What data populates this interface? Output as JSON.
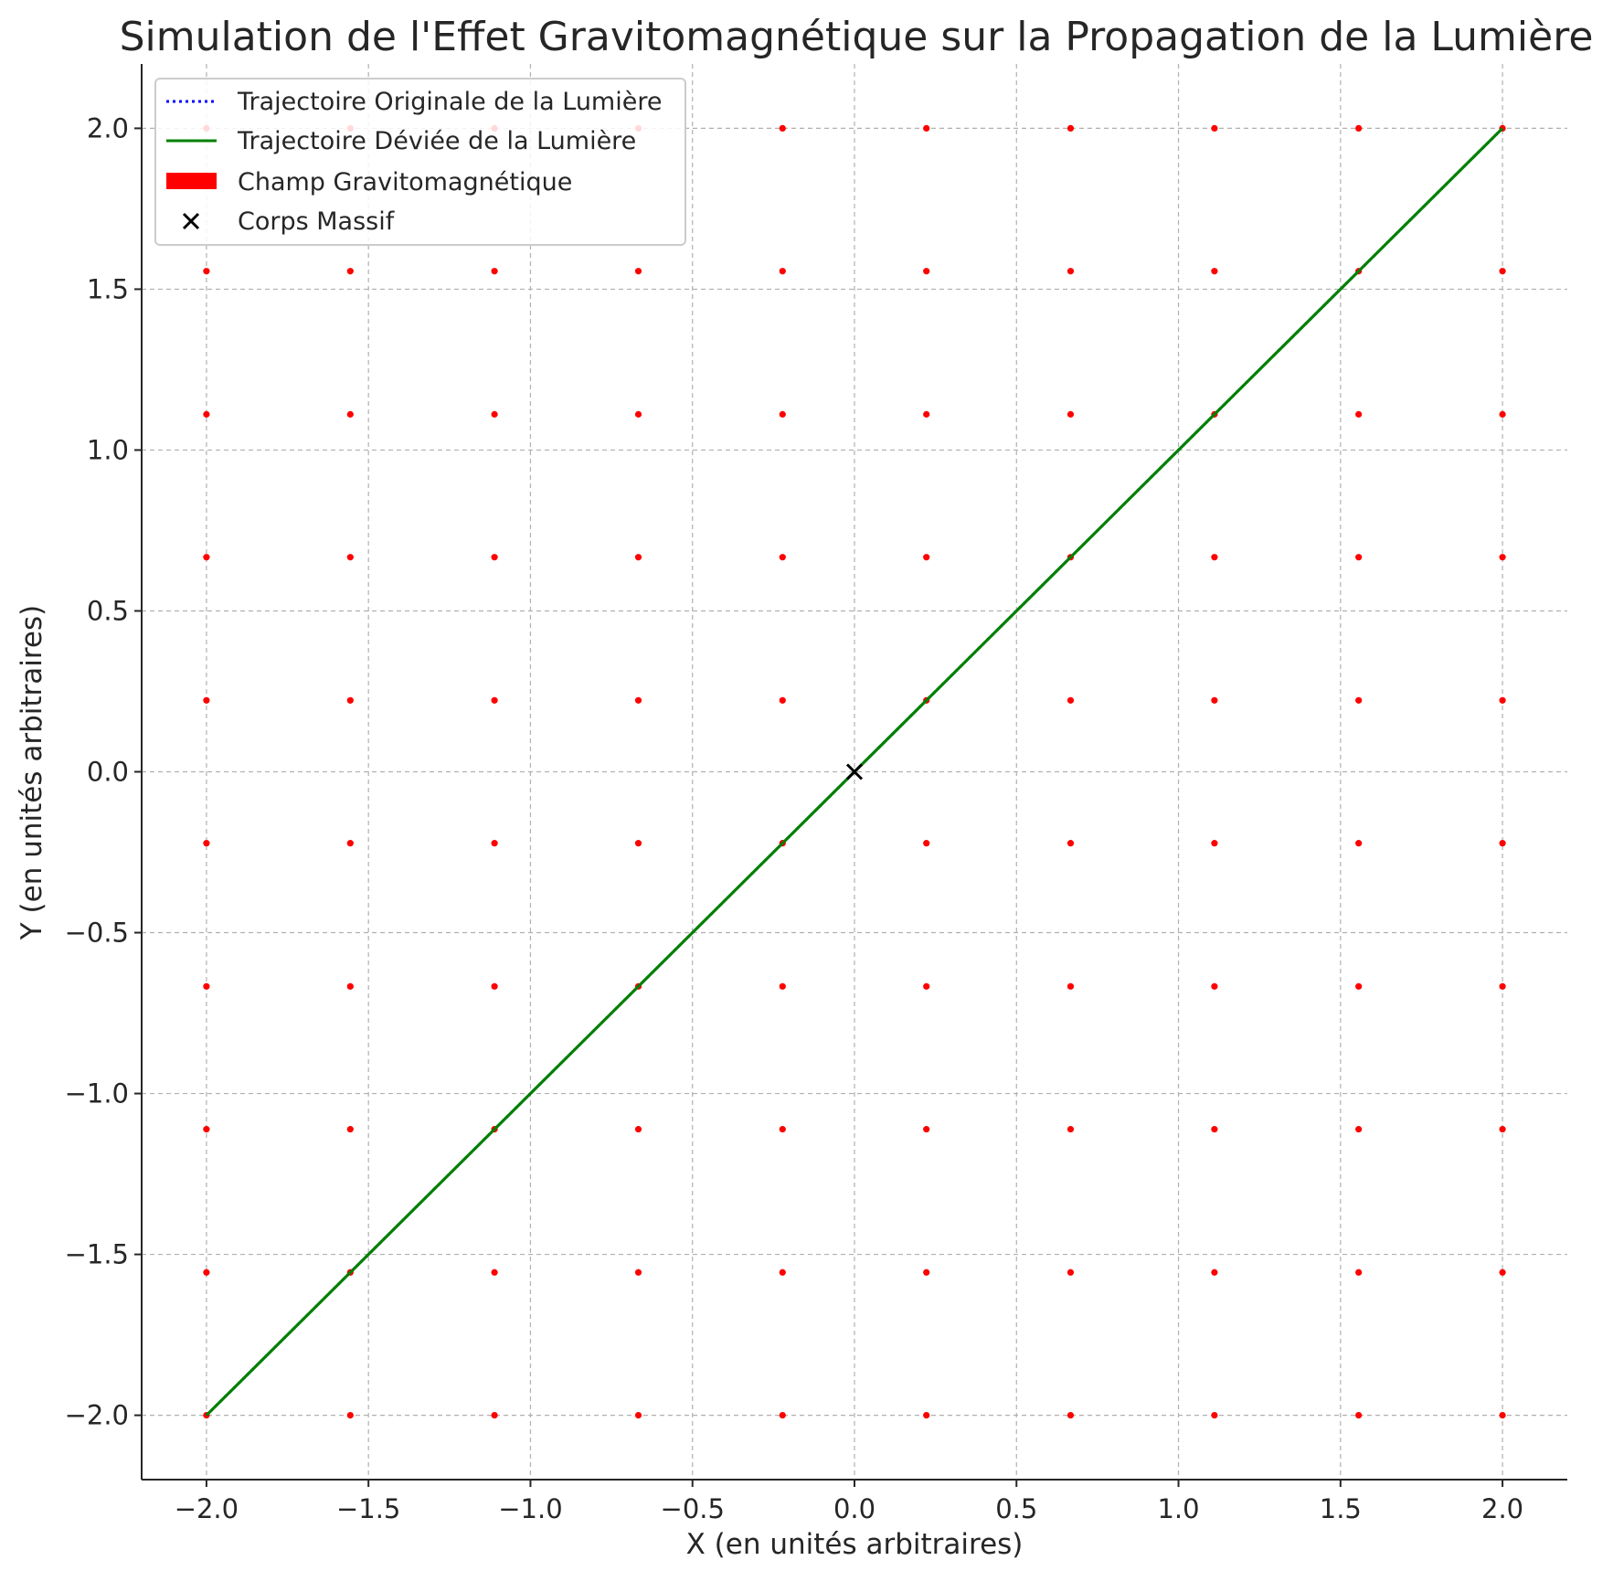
{
  "chart_data": {
    "type": "scatter",
    "title": "Simulation de l'Effet Gravitomagnétique sur la Propagation de la Lumière",
    "xlabel": "X (en unités arbitraires)",
    "ylabel": "Y (en unités arbitraires)",
    "xlim": [
      -2.2,
      2.2
    ],
    "ylim": [
      -2.2,
      2.2
    ],
    "grid": true,
    "legend_position": "top-left",
    "x_ticks": [
      -2.0,
      -1.5,
      -1.0,
      -0.5,
      0.0,
      0.5,
      1.0,
      1.5,
      2.0
    ],
    "y_ticks": [
      -2.0,
      -1.5,
      -1.0,
      -0.5,
      0.0,
      0.5,
      1.0,
      1.5,
      2.0
    ],
    "x_tick_labels": [
      "−2.0",
      "−1.5",
      "−1.0",
      "−0.5",
      "0.0",
      "0.5",
      "1.0",
      "1.5",
      "2.0"
    ],
    "y_tick_labels": [
      "−2.0",
      "−1.5",
      "−1.0",
      "−0.5",
      "0.0",
      "0.5",
      "1.0",
      "1.5",
      "2.0"
    ],
    "series": [
      {
        "name": "Trajectoire Originale de la Lumière",
        "kind": "line",
        "style": "dotted",
        "color": "#0000ff",
        "x": [
          -2.0,
          2.0
        ],
        "y": [
          -2.0,
          2.0
        ]
      },
      {
        "name": "Trajectoire Déviée de la Lumière",
        "kind": "line",
        "style": "solid",
        "color": "#008000",
        "x": [
          -2.0,
          2.0
        ],
        "y": [
          -2.0,
          2.0
        ]
      },
      {
        "name": "Champ Gravitomagnétique",
        "kind": "quiver-grid",
        "color": "#ff0000",
        "grid_values": [
          -2.0,
          -1.556,
          -1.111,
          -0.667,
          -0.222,
          0.222,
          0.667,
          1.111,
          1.556,
          2.0
        ]
      },
      {
        "name": "Corps Massif",
        "kind": "marker",
        "marker": "x",
        "color": "#000000",
        "x": [
          0.0
        ],
        "y": [
          0.0
        ]
      }
    ]
  }
}
